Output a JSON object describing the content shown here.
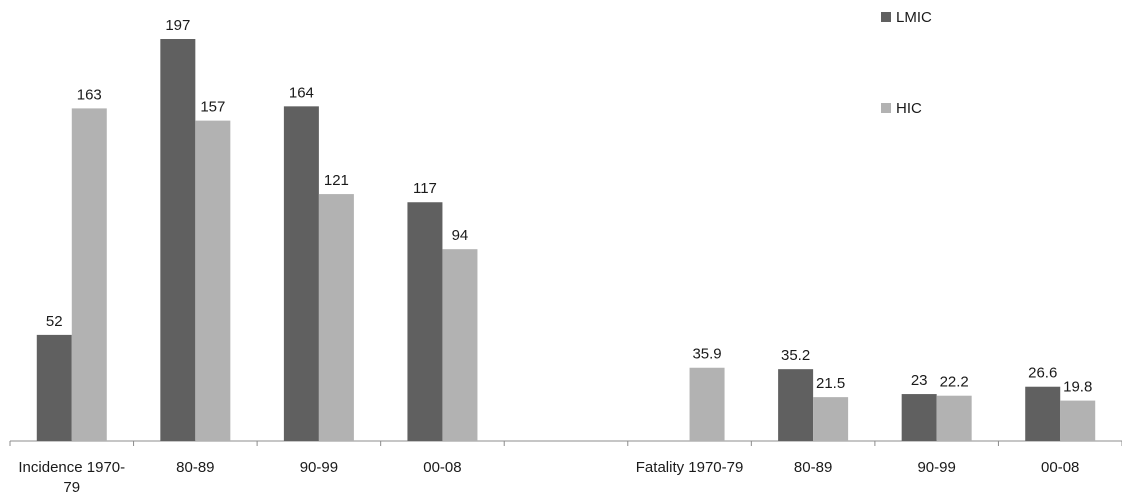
{
  "chart_data": {
    "type": "bar",
    "categories": [
      "Incidence 1970-79",
      "80-89",
      "90-99",
      "00-08",
      "",
      "Fatality 1970-79",
      "80-89",
      "90-99",
      "00-08"
    ],
    "category_display": [
      [
        "Incidence 1970-",
        "79"
      ],
      [
        "80-89"
      ],
      [
        "90-99"
      ],
      [
        "00-08"
      ],
      [
        ""
      ],
      [
        "Fatality 1970-79"
      ],
      [
        "80-89"
      ],
      [
        "90-99"
      ],
      [
        "00-08"
      ]
    ],
    "series": [
      {
        "name": "LMIC",
        "color": "#606060",
        "values": [
          52,
          197,
          164,
          117,
          null,
          null,
          35.2,
          23,
          26.6
        ],
        "labels": [
          "52",
          "197",
          "164",
          "117",
          "",
          "",
          "35.2",
          "23",
          "26.6"
        ]
      },
      {
        "name": "HIC",
        "color": "#b2b2b2",
        "values": [
          163,
          157,
          121,
          94,
          null,
          35.9,
          21.5,
          22.2,
          19.8
        ],
        "labels": [
          "163",
          "157",
          "121",
          "94",
          "",
          "35.9",
          "21.5",
          "22.2",
          "19.8"
        ]
      }
    ],
    "ylim": [
      0,
      197
    ],
    "grid": false,
    "legend_position": "top-right",
    "title": "",
    "xlabel": "",
    "ylabel": ""
  }
}
